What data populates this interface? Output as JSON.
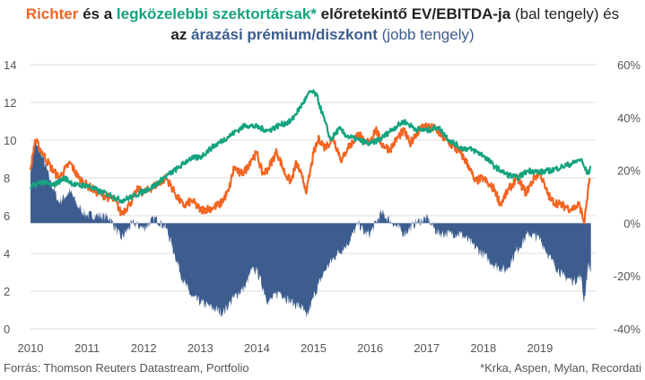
{
  "title": {
    "line1": [
      {
        "text": "Richter",
        "color": "orange",
        "weight": "bold"
      },
      {
        "text": " és a ",
        "color": "dark",
        "weight": "bold"
      },
      {
        "text": "legközelebbi szektortársak*",
        "color": "green",
        "weight": "bold"
      },
      {
        "text": " előretekintő EV/EBITDA-ja ",
        "color": "dark",
        "weight": "bold"
      },
      {
        "text": "(bal tengely) és",
        "color": "dark",
        "weight": "normal"
      }
    ],
    "line2": [
      {
        "text": "az ",
        "color": "dark",
        "weight": "bold"
      },
      {
        "text": "árazási prémium/diszkont ",
        "color": "blue",
        "weight": "bold"
      },
      {
        "text": "(jobb tengely)",
        "color": "blue",
        "weight": "normal"
      }
    ]
  },
  "colors": {
    "orange": "#f26522",
    "green": "#15a37f",
    "blue": "#3d5d8f",
    "dark": "#222222",
    "grid": "#dddddd"
  },
  "footer": {
    "source": "Forrás: Thomson Reuters Datastream, Portfolio",
    "note": "*Krka, Aspen, Mylan, Recordati"
  },
  "chart_data": {
    "type": "line",
    "title": "Richter és a legközelebbi szektortársak* előretekintő EV/EBITDA-ja (bal tengely) és az árazási prémium/diszkont (jobb tengely)",
    "x_ticks": [
      "2010",
      "2011",
      "2012",
      "2013",
      "2014",
      "2015",
      "2016",
      "2017",
      "2018",
      "2019"
    ],
    "x_range": [
      2010.0,
      2020.0
    ],
    "y_left": {
      "range": [
        0,
        14
      ],
      "ticks": [
        "0",
        "2",
        "4",
        "6",
        "8",
        "10",
        "12",
        "14"
      ]
    },
    "y_right": {
      "range": [
        -40,
        60
      ],
      "ticks": [
        "60%",
        "40%",
        "20%",
        "0%",
        "-20%",
        "-40%"
      ],
      "ticks_values": [
        60,
        40,
        20,
        0,
        -20,
        -40
      ]
    },
    "grid": true,
    "series": [
      {
        "name": "Richter",
        "axis": "left",
        "style": "line",
        "color": "orange",
        "points": [
          [
            2010.0,
            8.4
          ],
          [
            2010.08,
            10.0
          ],
          [
            2010.2,
            9.4
          ],
          [
            2010.35,
            8.6
          ],
          [
            2010.5,
            8.0
          ],
          [
            2010.7,
            8.8
          ],
          [
            2010.85,
            8.0
          ],
          [
            2011.0,
            7.6
          ],
          [
            2011.2,
            7.2
          ],
          [
            2011.35,
            7.0
          ],
          [
            2011.5,
            6.8
          ],
          [
            2011.6,
            6.1
          ],
          [
            2011.75,
            6.6
          ],
          [
            2011.9,
            7.4
          ],
          [
            2012.0,
            7.2
          ],
          [
            2012.2,
            7.6
          ],
          [
            2012.4,
            8.0
          ],
          [
            2012.55,
            7.2
          ],
          [
            2012.7,
            6.5
          ],
          [
            2012.85,
            6.8
          ],
          [
            2013.0,
            6.3
          ],
          [
            2013.2,
            6.4
          ],
          [
            2013.35,
            6.6
          ],
          [
            2013.5,
            7.3
          ],
          [
            2013.6,
            8.6
          ],
          [
            2013.7,
            8.2
          ],
          [
            2013.8,
            8.4
          ],
          [
            2013.9,
            9.0
          ],
          [
            2014.0,
            9.3
          ],
          [
            2014.1,
            8.2
          ],
          [
            2014.2,
            8.5
          ],
          [
            2014.35,
            9.4
          ],
          [
            2014.5,
            8.2
          ],
          [
            2014.6,
            7.8
          ],
          [
            2014.7,
            8.8
          ],
          [
            2014.8,
            8.0
          ],
          [
            2014.88,
            7.3
          ],
          [
            2015.0,
            9.3
          ],
          [
            2015.1,
            10.1
          ],
          [
            2015.2,
            9.6
          ],
          [
            2015.35,
            10.1
          ],
          [
            2015.5,
            8.9
          ],
          [
            2015.6,
            9.6
          ],
          [
            2015.7,
            9.9
          ],
          [
            2015.8,
            10.4
          ],
          [
            2015.9,
            9.8
          ],
          [
            2016.0,
            10.0
          ],
          [
            2016.1,
            10.6
          ],
          [
            2016.2,
            9.8
          ],
          [
            2016.35,
            9.5
          ],
          [
            2016.5,
            10.2
          ],
          [
            2016.6,
            10.5
          ],
          [
            2016.7,
            9.8
          ],
          [
            2016.8,
            10.3
          ],
          [
            2016.95,
            10.8
          ],
          [
            2017.05,
            10.7
          ],
          [
            2017.15,
            10.6
          ],
          [
            2017.3,
            10.1
          ],
          [
            2017.45,
            9.7
          ],
          [
            2017.6,
            9.3
          ],
          [
            2017.75,
            8.6
          ],
          [
            2017.85,
            7.8
          ],
          [
            2018.0,
            8.0
          ],
          [
            2018.1,
            7.6
          ],
          [
            2018.2,
            7.4
          ],
          [
            2018.3,
            6.6
          ],
          [
            2018.45,
            7.4
          ],
          [
            2018.6,
            8.0
          ],
          [
            2018.75,
            7.2
          ],
          [
            2018.9,
            8.0
          ],
          [
            2019.0,
            8.3
          ],
          [
            2019.1,
            7.4
          ],
          [
            2019.2,
            6.8
          ],
          [
            2019.35,
            6.6
          ],
          [
            2019.5,
            6.4
          ],
          [
            2019.6,
            6.4
          ],
          [
            2019.7,
            6.6
          ],
          [
            2019.78,
            5.6
          ],
          [
            2019.83,
            6.8
          ],
          [
            2019.88,
            8.0
          ]
        ]
      },
      {
        "name": "legközelebbi szektortársak*",
        "axis": "left",
        "style": "line",
        "color": "green",
        "points": [
          [
            2010.0,
            7.5
          ],
          [
            2010.2,
            7.8
          ],
          [
            2010.4,
            7.6
          ],
          [
            2010.6,
            8.0
          ],
          [
            2010.8,
            7.6
          ],
          [
            2011.0,
            7.6
          ],
          [
            2011.2,
            7.3
          ],
          [
            2011.4,
            7.1
          ],
          [
            2011.6,
            6.8
          ],
          [
            2011.8,
            7.0
          ],
          [
            2012.0,
            7.3
          ],
          [
            2012.2,
            7.6
          ],
          [
            2012.4,
            8.1
          ],
          [
            2012.6,
            8.5
          ],
          [
            2012.8,
            9.0
          ],
          [
            2013.0,
            9.1
          ],
          [
            2013.2,
            9.6
          ],
          [
            2013.4,
            10.0
          ],
          [
            2013.6,
            10.4
          ],
          [
            2013.8,
            10.8
          ],
          [
            2014.0,
            10.7
          ],
          [
            2014.2,
            10.5
          ],
          [
            2014.4,
            10.8
          ],
          [
            2014.6,
            11.0
          ],
          [
            2014.8,
            11.9
          ],
          [
            2014.95,
            12.6
          ],
          [
            2015.05,
            12.4
          ],
          [
            2015.2,
            11.0
          ],
          [
            2015.3,
            10.0
          ],
          [
            2015.45,
            10.6
          ],
          [
            2015.6,
            10.2
          ],
          [
            2015.8,
            10.0
          ],
          [
            2016.0,
            9.8
          ],
          [
            2016.2,
            10.1
          ],
          [
            2016.4,
            10.6
          ],
          [
            2016.6,
            11.0
          ],
          [
            2016.8,
            10.6
          ],
          [
            2017.0,
            10.5
          ],
          [
            2017.2,
            10.7
          ],
          [
            2017.4,
            10.0
          ],
          [
            2017.6,
            9.6
          ],
          [
            2017.8,
            9.5
          ],
          [
            2018.0,
            9.2
          ],
          [
            2018.2,
            8.6
          ],
          [
            2018.4,
            8.2
          ],
          [
            2018.6,
            8.0
          ],
          [
            2018.8,
            8.4
          ],
          [
            2019.0,
            8.3
          ],
          [
            2019.2,
            8.4
          ],
          [
            2019.4,
            8.6
          ],
          [
            2019.6,
            8.8
          ],
          [
            2019.72,
            9.0
          ],
          [
            2019.78,
            8.6
          ],
          [
            2019.85,
            8.2
          ],
          [
            2019.9,
            8.6
          ]
        ]
      },
      {
        "name": "árazási prémium/diszkont",
        "axis": "right",
        "style": "area",
        "color": "blue",
        "points": [
          [
            2010.0,
            20
          ],
          [
            2010.08,
            30
          ],
          [
            2010.2,
            26
          ],
          [
            2010.35,
            16
          ],
          [
            2010.5,
            8
          ],
          [
            2010.7,
            12
          ],
          [
            2010.85,
            6
          ],
          [
            2011.0,
            3
          ],
          [
            2011.2,
            3
          ],
          [
            2011.4,
            2
          ],
          [
            2011.6,
            -6
          ],
          [
            2011.8,
            0
          ],
          [
            2012.0,
            -2
          ],
          [
            2012.2,
            2
          ],
          [
            2012.4,
            -2
          ],
          [
            2012.55,
            -12
          ],
          [
            2012.7,
            -22
          ],
          [
            2012.85,
            -28
          ],
          [
            2013.0,
            -30
          ],
          [
            2013.2,
            -32
          ],
          [
            2013.4,
            -34
          ],
          [
            2013.6,
            -28
          ],
          [
            2013.8,
            -24
          ],
          [
            2013.9,
            -18
          ],
          [
            2014.0,
            -18
          ],
          [
            2014.2,
            -30
          ],
          [
            2014.4,
            -26
          ],
          [
            2014.6,
            -30
          ],
          [
            2014.8,
            -32
          ],
          [
            2014.88,
            -36
          ],
          [
            2015.0,
            -28
          ],
          [
            2015.2,
            -18
          ],
          [
            2015.4,
            -12
          ],
          [
            2015.6,
            -8
          ],
          [
            2015.8,
            0
          ],
          [
            2015.9,
            -4
          ],
          [
            2016.0,
            -4
          ],
          [
            2016.2,
            4
          ],
          [
            2016.4,
            0
          ],
          [
            2016.6,
            -4
          ],
          [
            2016.8,
            0
          ],
          [
            2017.0,
            2
          ],
          [
            2017.2,
            -4
          ],
          [
            2017.4,
            -4
          ],
          [
            2017.6,
            -4
          ],
          [
            2017.8,
            -8
          ],
          [
            2018.0,
            -12
          ],
          [
            2018.2,
            -16
          ],
          [
            2018.4,
            -18
          ],
          [
            2018.6,
            -10
          ],
          [
            2018.8,
            -4
          ],
          [
            2019.0,
            -6
          ],
          [
            2019.2,
            -14
          ],
          [
            2019.4,
            -20
          ],
          [
            2019.6,
            -22
          ],
          [
            2019.72,
            -20
          ],
          [
            2019.78,
            -30
          ],
          [
            2019.85,
            -16
          ],
          [
            2019.9,
            -18
          ]
        ]
      }
    ]
  }
}
